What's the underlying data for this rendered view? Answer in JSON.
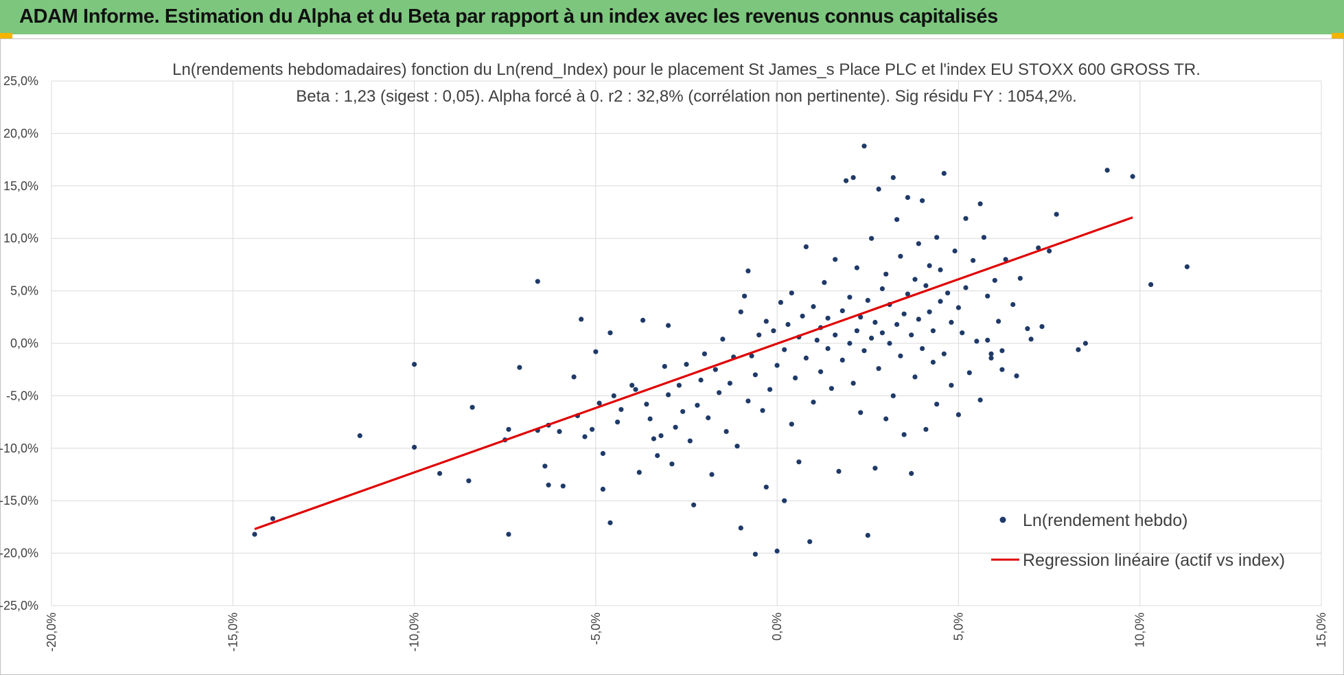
{
  "banner": {
    "title": "ADAM Informe. Estimation du Alpha et du Beta par rapport à un index avec les revenus connus capitalisés"
  },
  "colors": {
    "banner": "#7dc67e",
    "accent": "#f4b400",
    "points": "#1f3a68",
    "regression": "#e00000",
    "grid": "#d9d9d9"
  },
  "chart_data": {
    "type": "scatter",
    "title": "Ln(rendements hebdomadaires) fonction du Ln(rend_Index) pour le placement St James_s Place PLC et l'index EU STOXX 600 GROSS TR.",
    "subtitle": "Beta : 1,23 (sigest : 0,05). Alpha forcé à 0. r2 : 32,8% (corrélation non pertinente). Sig résidu FY : 1054,2%.",
    "xlabel": "",
    "ylabel": "",
    "xlim": [
      -0.2,
      0.15
    ],
    "ylim": [
      -0.25,
      0.25
    ],
    "grid": true,
    "legend_position": "bottom-right",
    "x_ticks": [
      "-20,0%",
      "-15,0%",
      "-10,0%",
      "-5,0%",
      "0,0%",
      "5,0%",
      "10,0%",
      "15,0%"
    ],
    "y_ticks": [
      "25,0%",
      "20,0%",
      "15,0%",
      "10,0%",
      "5,0%",
      "0,0%",
      "-5,0%",
      "-10,0%",
      "-15,0%",
      "-20,0%",
      "-25,0%"
    ],
    "series": [
      {
        "name": "Ln(rendement hebdo)",
        "kind": "scatter",
        "points": [
          [
            -0.144,
            -0.182
          ],
          [
            -0.139,
            -0.167
          ],
          [
            -0.115,
            -0.088
          ],
          [
            -0.1,
            -0.02
          ],
          [
            -0.1,
            -0.099
          ],
          [
            -0.093,
            -0.124
          ],
          [
            -0.085,
            -0.131
          ],
          [
            -0.084,
            -0.061
          ],
          [
            -0.075,
            -0.092
          ],
          [
            -0.074,
            -0.082
          ],
          [
            -0.074,
            -0.182
          ],
          [
            -0.071,
            -0.023
          ],
          [
            -0.066,
            0.059
          ],
          [
            -0.066,
            -0.083
          ],
          [
            -0.064,
            -0.117
          ],
          [
            -0.063,
            -0.135
          ],
          [
            -0.063,
            -0.078
          ],
          [
            -0.06,
            -0.084
          ],
          [
            -0.059,
            -0.136
          ],
          [
            -0.056,
            -0.032
          ],
          [
            -0.055,
            -0.069
          ],
          [
            -0.054,
            0.023
          ],
          [
            -0.053,
            -0.089
          ],
          [
            -0.051,
            -0.082
          ],
          [
            -0.05,
            -0.008
          ],
          [
            -0.049,
            -0.057
          ],
          [
            -0.048,
            -0.105
          ],
          [
            -0.048,
            -0.139
          ],
          [
            -0.046,
            0.01
          ],
          [
            -0.046,
            -0.171
          ],
          [
            -0.045,
            -0.05
          ],
          [
            -0.044,
            -0.075
          ],
          [
            -0.043,
            -0.063
          ],
          [
            -0.04,
            -0.04
          ],
          [
            -0.039,
            -0.044
          ],
          [
            -0.038,
            -0.123
          ],
          [
            -0.037,
            0.022
          ],
          [
            -0.036,
            -0.058
          ],
          [
            -0.035,
            -0.072
          ],
          [
            -0.034,
            -0.091
          ],
          [
            -0.033,
            -0.107
          ],
          [
            -0.032,
            -0.088
          ],
          [
            -0.031,
            -0.022
          ],
          [
            -0.03,
            -0.049
          ],
          [
            -0.03,
            0.017
          ],
          [
            -0.029,
            -0.115
          ],
          [
            -0.028,
            -0.08
          ],
          [
            -0.027,
            -0.04
          ],
          [
            -0.026,
            -0.065
          ],
          [
            -0.025,
            -0.02
          ],
          [
            -0.024,
            -0.093
          ],
          [
            -0.023,
            -0.154
          ],
          [
            -0.022,
            -0.059
          ],
          [
            -0.021,
            -0.035
          ],
          [
            -0.02,
            -0.01
          ],
          [
            -0.019,
            -0.071
          ],
          [
            -0.018,
            -0.125
          ],
          [
            -0.017,
            -0.025
          ],
          [
            -0.016,
            -0.047
          ],
          [
            -0.015,
            0.004
          ],
          [
            -0.014,
            -0.084
          ],
          [
            -0.013,
            -0.038
          ],
          [
            -0.012,
            -0.013
          ],
          [
            -0.011,
            -0.098
          ],
          [
            -0.01,
            0.03
          ],
          [
            -0.01,
            -0.176
          ],
          [
            -0.009,
            0.045
          ],
          [
            -0.008,
            -0.055
          ],
          [
            -0.008,
            0.069
          ],
          [
            -0.007,
            -0.012
          ],
          [
            -0.006,
            -0.03
          ],
          [
            -0.006,
            -0.201
          ],
          [
            -0.005,
            0.008
          ],
          [
            -0.004,
            -0.064
          ],
          [
            -0.003,
            0.021
          ],
          [
            -0.003,
            -0.137
          ],
          [
            -0.002,
            -0.044
          ],
          [
            -0.001,
            0.012
          ],
          [
            0.0,
            -0.021
          ],
          [
            0.0,
            -0.198
          ],
          [
            0.001,
            0.039
          ],
          [
            0.002,
            -0.006
          ],
          [
            0.002,
            -0.15
          ],
          [
            0.003,
            0.018
          ],
          [
            0.004,
            -0.077
          ],
          [
            0.004,
            0.048
          ],
          [
            0.005,
            -0.033
          ],
          [
            0.006,
            0.006
          ],
          [
            0.006,
            -0.113
          ],
          [
            0.007,
            0.026
          ],
          [
            0.008,
            -0.014
          ],
          [
            0.008,
            0.092
          ],
          [
            0.009,
            -0.189
          ],
          [
            0.01,
            0.035
          ],
          [
            0.01,
            -0.056
          ],
          [
            0.011,
            0.003
          ],
          [
            0.012,
            0.015
          ],
          [
            0.012,
            -0.027
          ],
          [
            0.013,
            0.058
          ],
          [
            0.014,
            -0.005
          ],
          [
            0.014,
            0.024
          ],
          [
            0.015,
            -0.043
          ],
          [
            0.016,
            0.008
          ],
          [
            0.016,
            0.08
          ],
          [
            0.017,
            -0.122
          ],
          [
            0.018,
            0.031
          ],
          [
            0.018,
            -0.016
          ],
          [
            0.019,
            0.155
          ],
          [
            0.02,
            0.0
          ],
          [
            0.02,
            0.044
          ],
          [
            0.021,
            0.158
          ],
          [
            0.021,
            -0.038
          ],
          [
            0.022,
            0.012
          ],
          [
            0.022,
            0.072
          ],
          [
            0.023,
            -0.066
          ],
          [
            0.023,
            0.025
          ],
          [
            0.024,
            0.188
          ],
          [
            0.024,
            -0.007
          ],
          [
            0.025,
            0.041
          ],
          [
            0.025,
            -0.183
          ],
          [
            0.026,
            0.005
          ],
          [
            0.026,
            0.1
          ],
          [
            0.027,
            -0.119
          ],
          [
            0.027,
            0.02
          ],
          [
            0.028,
            0.147
          ],
          [
            0.028,
            -0.024
          ],
          [
            0.029,
            0.052
          ],
          [
            0.029,
            0.01
          ],
          [
            0.03,
            -0.072
          ],
          [
            0.03,
            0.066
          ],
          [
            0.031,
            0.0
          ],
          [
            0.031,
            0.037
          ],
          [
            0.032,
            0.158
          ],
          [
            0.032,
            -0.05
          ],
          [
            0.033,
            0.018
          ],
          [
            0.033,
            0.118
          ],
          [
            0.034,
            -0.012
          ],
          [
            0.034,
            0.083
          ],
          [
            0.035,
            0.028
          ],
          [
            0.035,
            -0.087
          ],
          [
            0.036,
            0.047
          ],
          [
            0.036,
            0.139
          ],
          [
            0.037,
            -0.124
          ],
          [
            0.037,
            0.008
          ],
          [
            0.038,
            0.061
          ],
          [
            0.038,
            -0.032
          ],
          [
            0.039,
            0.023
          ],
          [
            0.039,
            0.095
          ],
          [
            0.04,
            -0.005
          ],
          [
            0.04,
            0.136
          ],
          [
            0.041,
            0.055
          ],
          [
            0.041,
            -0.082
          ],
          [
            0.042,
            0.03
          ],
          [
            0.042,
            0.074
          ],
          [
            0.043,
            -0.018
          ],
          [
            0.043,
            0.012
          ],
          [
            0.044,
            0.101
          ],
          [
            0.044,
            -0.058
          ],
          [
            0.045,
            0.04
          ],
          [
            0.045,
            0.07
          ],
          [
            0.046,
            0.162
          ],
          [
            0.046,
            -0.01
          ],
          [
            0.047,
            0.048
          ],
          [
            0.048,
            0.02
          ],
          [
            0.048,
            -0.04
          ],
          [
            0.049,
            0.088
          ],
          [
            0.05,
            0.034
          ],
          [
            0.05,
            -0.068
          ],
          [
            0.051,
            0.01
          ],
          [
            0.052,
            0.119
          ],
          [
            0.052,
            0.053
          ],
          [
            0.053,
            -0.028
          ],
          [
            0.054,
            0.079
          ],
          [
            0.055,
            0.002
          ],
          [
            0.056,
            0.133
          ],
          [
            0.056,
            -0.054
          ],
          [
            0.057,
            0.101
          ],
          [
            0.058,
            0.045
          ],
          [
            0.059,
            -0.014
          ],
          [
            0.06,
            0.06
          ],
          [
            0.061,
            0.021
          ],
          [
            0.062,
            -0.025
          ],
          [
            0.063,
            0.08
          ],
          [
            0.065,
            0.037
          ],
          [
            0.066,
            -0.031
          ],
          [
            0.067,
            0.062
          ],
          [
            0.069,
            0.014
          ],
          [
            0.07,
            0.004
          ],
          [
            0.072,
            0.091
          ],
          [
            0.073,
            0.016
          ],
          [
            0.075,
            0.088
          ],
          [
            0.077,
            0.123
          ],
          [
            0.083,
            -0.006
          ],
          [
            0.085,
            0.0
          ],
          [
            0.091,
            0.165
          ],
          [
            0.098,
            0.159
          ],
          [
            0.103,
            0.056
          ],
          [
            0.113,
            0.073
          ],
          [
            0.062,
            -0.007
          ],
          [
            0.058,
            0.003
          ],
          [
            0.059,
            -0.01
          ]
        ]
      },
      {
        "name": "Regression linéaire (actif vs index)",
        "kind": "line",
        "points": [
          [
            -0.144,
            -0.177
          ],
          [
            0.098,
            0.12
          ]
        ]
      }
    ]
  }
}
